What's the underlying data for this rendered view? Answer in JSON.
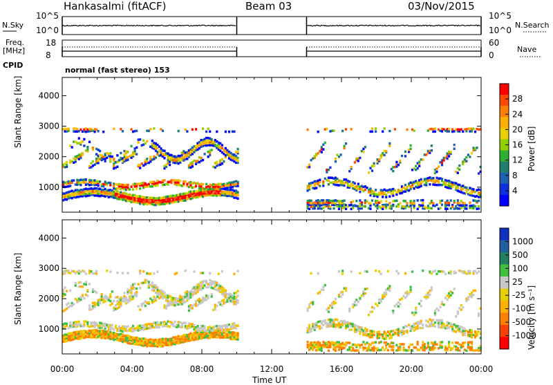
{
  "header": {
    "station": "Hankasalmi (fitACF)",
    "beam": "Beam 03",
    "date": "03/Nov/2015"
  },
  "side_labels": {
    "nsky": "N.Sky",
    "freq": "Freq.",
    "freq_unit": "[MHz]",
    "cpid": "CPID",
    "nsearch": "N.Search",
    "nave": "Nave"
  },
  "mini_ticks": {
    "noise_top": "10^5",
    "noise_bottom": "10^0",
    "freq_top": "18",
    "freq_bottom": "8",
    "nave_top": "60",
    "nave_bottom": "0"
  },
  "cpid_text": "normal (fast stereo) 153",
  "colorbars": {
    "power": {
      "label": "Power [dB]",
      "ticks": [
        "28",
        "24",
        "20",
        "16",
        "12",
        "8",
        "4"
      ],
      "colors": [
        "#ff0000",
        "#ff4a00",
        "#ff8000",
        "#ffb000",
        "#e8d000",
        "#90d000",
        "#30b030",
        "#208070",
        "#2060b0",
        "#1030e0",
        "#0000ff"
      ]
    },
    "velocity": {
      "label": "Velocity [m s⁻¹]",
      "ticks": [
        "1000",
        "500",
        "100",
        "25",
        "-25",
        "-100",
        "-500",
        "-1000"
      ],
      "colors": [
        "#1030c0",
        "#2060a0",
        "#208060",
        "#40c040",
        "#c8c8c8",
        "#e8d000",
        "#ffb000",
        "#ff8000",
        "#ff4000",
        "#ff0000"
      ]
    }
  },
  "chart_data": [
    {
      "type": "heatmap",
      "title": "Power",
      "ylabel": "Slant Range [km]",
      "ylim": [
        180,
        4600
      ],
      "y_ticks": [
        "1000",
        "2000",
        "3000",
        "4000"
      ],
      "xlabel": "Time UT",
      "x_ticks": [
        "00:00",
        "04:00",
        "08:00",
        "12:00",
        "16:00",
        "20:00",
        "00:00"
      ],
      "x_range_hours": [
        0,
        24
      ],
      "colorbar_range_dB": [
        0,
        32
      ],
      "data_gap_hours": [
        10,
        14
      ],
      "features": [
        {
          "t_start": 0,
          "t_end": 10,
          "range_min": 500,
          "range_max": 3200,
          "peak_power_dB": 30
        },
        {
          "t_start": 14,
          "t_end": 24,
          "range_min": 300,
          "range_max": 3200,
          "peak_power_dB": 28
        }
      ]
    },
    {
      "type": "heatmap",
      "title": "Velocity",
      "ylabel": "Slant Range [km]",
      "ylim": [
        180,
        4600
      ],
      "y_ticks": [
        "1000",
        "2000",
        "3000",
        "4000"
      ],
      "xlabel": "Time UT",
      "x_ticks": [
        "00:00",
        "04:00",
        "08:00",
        "12:00",
        "16:00",
        "20:00",
        "00:00"
      ],
      "x_range_hours": [
        0,
        24
      ],
      "data_gap_hours": [
        10,
        14
      ]
    }
  ]
}
